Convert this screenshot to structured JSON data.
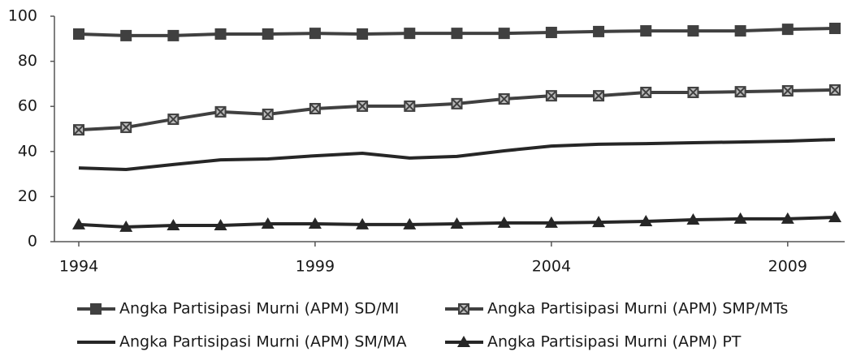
{
  "chart_data": {
    "type": "line",
    "x": [
      1994,
      1995,
      1996,
      1997,
      1998,
      1999,
      2000,
      2001,
      2002,
      2003,
      2004,
      2005,
      2006,
      2007,
      2008,
      2009,
      2010
    ],
    "xlim": [
      1994,
      2010
    ],
    "xticks": [
      1994,
      1999,
      2004,
      2009
    ],
    "ylim": [
      0,
      100
    ],
    "yticks": [
      0,
      20,
      40,
      60,
      80,
      100
    ],
    "grid": false,
    "series": [
      {
        "name": "Angka Partisipasi Murni (APM) SD/MI",
        "color": "#404040",
        "marker": "square",
        "values": [
          92.1,
          91.4,
          91.4,
          92.1,
          92.1,
          92.4,
          92.1,
          92.4,
          92.4,
          92.4,
          92.8,
          93.2,
          93.5,
          93.5,
          93.5,
          94.2,
          94.6
        ]
      },
      {
        "name": "Angka Partisipasi Murni (APM) SMP/MTs",
        "color": "#404040",
        "marker": "square-x",
        "values": [
          49.6,
          50.7,
          54.3,
          57.6,
          56.5,
          59.0,
          60.1,
          60.1,
          61.2,
          63.3,
          64.7,
          64.7,
          66.2,
          66.2,
          66.5,
          66.9,
          67.3
        ]
      },
      {
        "name": "Angka Partisipasi Murni (APM) SM/MA",
        "color": "#262626",
        "marker": "none",
        "values": [
          32.7,
          32.0,
          34.2,
          36.3,
          36.7,
          38.1,
          39.2,
          37.1,
          37.8,
          40.3,
          42.4,
          43.2,
          43.5,
          43.9,
          44.2,
          44.6,
          45.3
        ]
      },
      {
        "name": "Angka Partisipasi Murni (APM) PT",
        "color": "#262626",
        "marker": "triangle",
        "values": [
          7.6,
          6.5,
          7.2,
          7.2,
          7.9,
          7.9,
          7.6,
          7.6,
          7.9,
          8.3,
          8.3,
          8.6,
          9.0,
          9.7,
          10.1,
          10.1,
          10.8
        ]
      }
    ]
  }
}
